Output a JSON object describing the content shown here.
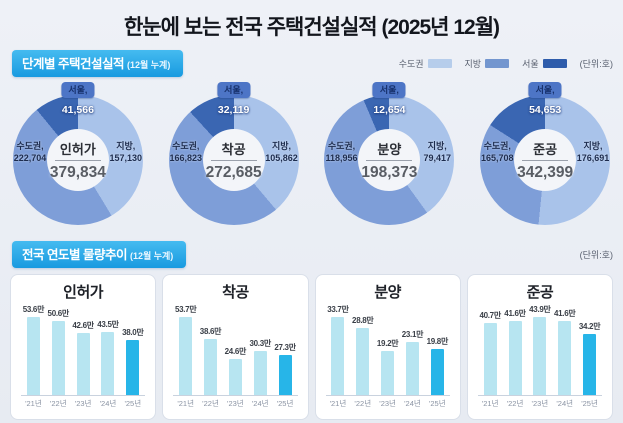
{
  "title": "한눈에 보는 전국 주택건설실적 (2025년 12월)",
  "sections": {
    "stage": {
      "title": "단계별 주택건설실적",
      "subtitle": "(12월 누계)",
      "unit": "(단위:호)"
    },
    "yearly": {
      "title": "전국 연도별 물량추이",
      "subtitle": "(12월 누계)",
      "unit": "(단위:호)"
    }
  },
  "legend": {
    "items": [
      {
        "label": "수도권",
        "color": "#b6cdeb"
      },
      {
        "label": "지방",
        "color": "#7396cf"
      },
      {
        "label": "서울",
        "color": "#2e5cab"
      }
    ]
  },
  "colors": {
    "donut_sudogwon": "#7e9ed8",
    "donut_jibang": "#a9c3ea",
    "donut_seoul": "#3a66b2",
    "bar": "#b7e5f1",
    "bar_highlight": "#27b5e8"
  },
  "chart_data": [
    {
      "type": "donut",
      "title": "인허가",
      "total": 379834,
      "total_label": "379,834",
      "segments": [
        {
          "name": "수도권,",
          "value": 222704,
          "label": "222,704"
        },
        {
          "name": "지방,",
          "value": 157130,
          "label": "157,130"
        },
        {
          "name": "서울,",
          "value": 41566,
          "label": "41,566"
        }
      ]
    },
    {
      "type": "donut",
      "title": "착공",
      "total": 272685,
      "total_label": "272,685",
      "segments": [
        {
          "name": "수도권,",
          "value": 166823,
          "label": "166,823"
        },
        {
          "name": "지방,",
          "value": 105862,
          "label": "105,862"
        },
        {
          "name": "서울,",
          "value": 32119,
          "label": "32,119"
        }
      ]
    },
    {
      "type": "donut",
      "title": "분양",
      "total": 198373,
      "total_label": "198,373",
      "segments": [
        {
          "name": "수도권,",
          "value": 118956,
          "label": "118,956"
        },
        {
          "name": "지방,",
          "value": 79417,
          "label": "79,417"
        },
        {
          "name": "서울,",
          "value": 12654,
          "label": "12,654"
        }
      ]
    },
    {
      "type": "donut",
      "title": "준공",
      "total": 342399,
      "total_label": "342,399",
      "segments": [
        {
          "name": "수도권,",
          "value": 165708,
          "label": "165,708"
        },
        {
          "name": "지방,",
          "value": 176691,
          "label": "176,691"
        },
        {
          "name": "서울,",
          "value": 54653,
          "label": "54,653"
        }
      ]
    },
    {
      "type": "bar",
      "title": "인허가",
      "categories": [
        "'21년",
        "'22년",
        "'23년",
        "'24년",
        "'25년"
      ],
      "values": [
        53.6,
        50.6,
        42.6,
        43.5,
        38.0
      ],
      "labels": [
        "53.6만",
        "50.6만",
        "42.6만",
        "43.5만",
        "38.0만"
      ],
      "highlight_index": 4,
      "ylim": [
        0,
        55
      ]
    },
    {
      "type": "bar",
      "title": "착공",
      "categories": [
        "'21년",
        "'22년",
        "'23년",
        "'24년",
        "'25년"
      ],
      "values": [
        53.7,
        38.6,
        24.6,
        30.3,
        27.3
      ],
      "labels": [
        "53.7만",
        "38.6만",
        "24.6만",
        "30.3만",
        "27.3만"
      ],
      "highlight_index": 4,
      "ylim": [
        0,
        55
      ]
    },
    {
      "type": "bar",
      "title": "분양",
      "categories": [
        "'21년",
        "'22년",
        "'23년",
        "'24년",
        "'25년"
      ],
      "values": [
        33.7,
        28.8,
        19.2,
        23.1,
        19.8
      ],
      "labels": [
        "33.7만",
        "28.8만",
        "19.2만",
        "23.1만",
        "19.8만"
      ],
      "highlight_index": 4,
      "ylim": [
        0,
        35
      ]
    },
    {
      "type": "bar",
      "title": "준공",
      "categories": [
        "'21년",
        "'22년",
        "'23년",
        "'24년",
        "'25년"
      ],
      "values": [
        40.7,
        41.6,
        43.9,
        41.6,
        34.2
      ],
      "labels": [
        "40.7만",
        "41.6만",
        "43.9만",
        "41.6만",
        "34.2만"
      ],
      "highlight_index": 4,
      "ylim": [
        0,
        45
      ]
    }
  ]
}
